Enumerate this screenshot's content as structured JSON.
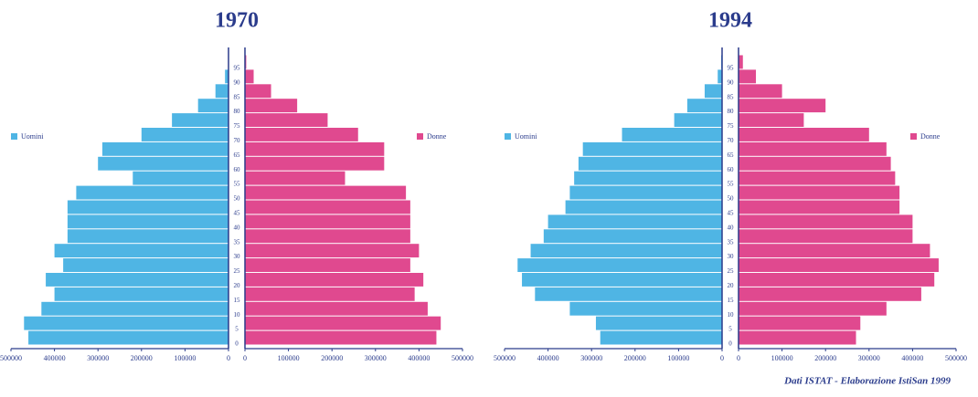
{
  "chart_data": [
    {
      "type": "pyramid",
      "title": "1970",
      "categories": [
        "0",
        "5",
        "10",
        "15",
        "20",
        "25",
        "30",
        "35",
        "40",
        "45",
        "50",
        "55",
        "60",
        "65",
        "70",
        "75",
        "80",
        "85",
        "90",
        "95"
      ],
      "series": [
        {
          "name": "Uomini",
          "color": "#4fb5e4",
          "values": [
            460000,
            470000,
            430000,
            400000,
            420000,
            380000,
            400000,
            370000,
            370000,
            370000,
            350000,
            220000,
            300000,
            290000,
            200000,
            130000,
            70000,
            30000,
            8000,
            1000
          ]
        },
        {
          "name": "Donne",
          "color": "#e0498f",
          "values": [
            440000,
            450000,
            420000,
            390000,
            410000,
            380000,
            400000,
            380000,
            380000,
            380000,
            370000,
            230000,
            320000,
            320000,
            260000,
            190000,
            120000,
            60000,
            20000,
            3000
          ]
        }
      ],
      "xlim": [
        0,
        500000
      ],
      "xticks": [
        0,
        100000,
        200000,
        300000,
        400000,
        500000
      ]
    },
    {
      "type": "pyramid",
      "title": "1994",
      "categories": [
        "0",
        "5",
        "10",
        "15",
        "20",
        "25",
        "30",
        "35",
        "40",
        "45",
        "50",
        "55",
        "60",
        "65",
        "70",
        "75",
        "80",
        "85",
        "90",
        "95"
      ],
      "series": [
        {
          "name": "Uomini",
          "color": "#4fb5e4",
          "values": [
            280000,
            290000,
            350000,
            430000,
            460000,
            470000,
            440000,
            410000,
            400000,
            360000,
            350000,
            340000,
            330000,
            320000,
            230000,
            110000,
            80000,
            40000,
            10000,
            2000
          ]
        },
        {
          "name": "Donne",
          "color": "#e0498f",
          "values": [
            270000,
            280000,
            340000,
            420000,
            450000,
            460000,
            440000,
            400000,
            400000,
            370000,
            370000,
            360000,
            350000,
            340000,
            300000,
            150000,
            200000,
            100000,
            40000,
            10000
          ]
        }
      ],
      "xlim": [
        0,
        500000
      ],
      "xticks": [
        0,
        100000,
        200000,
        300000,
        400000,
        500000
      ]
    }
  ],
  "source": "Dati ISTAT - Elaborazione IstiSan 1999"
}
